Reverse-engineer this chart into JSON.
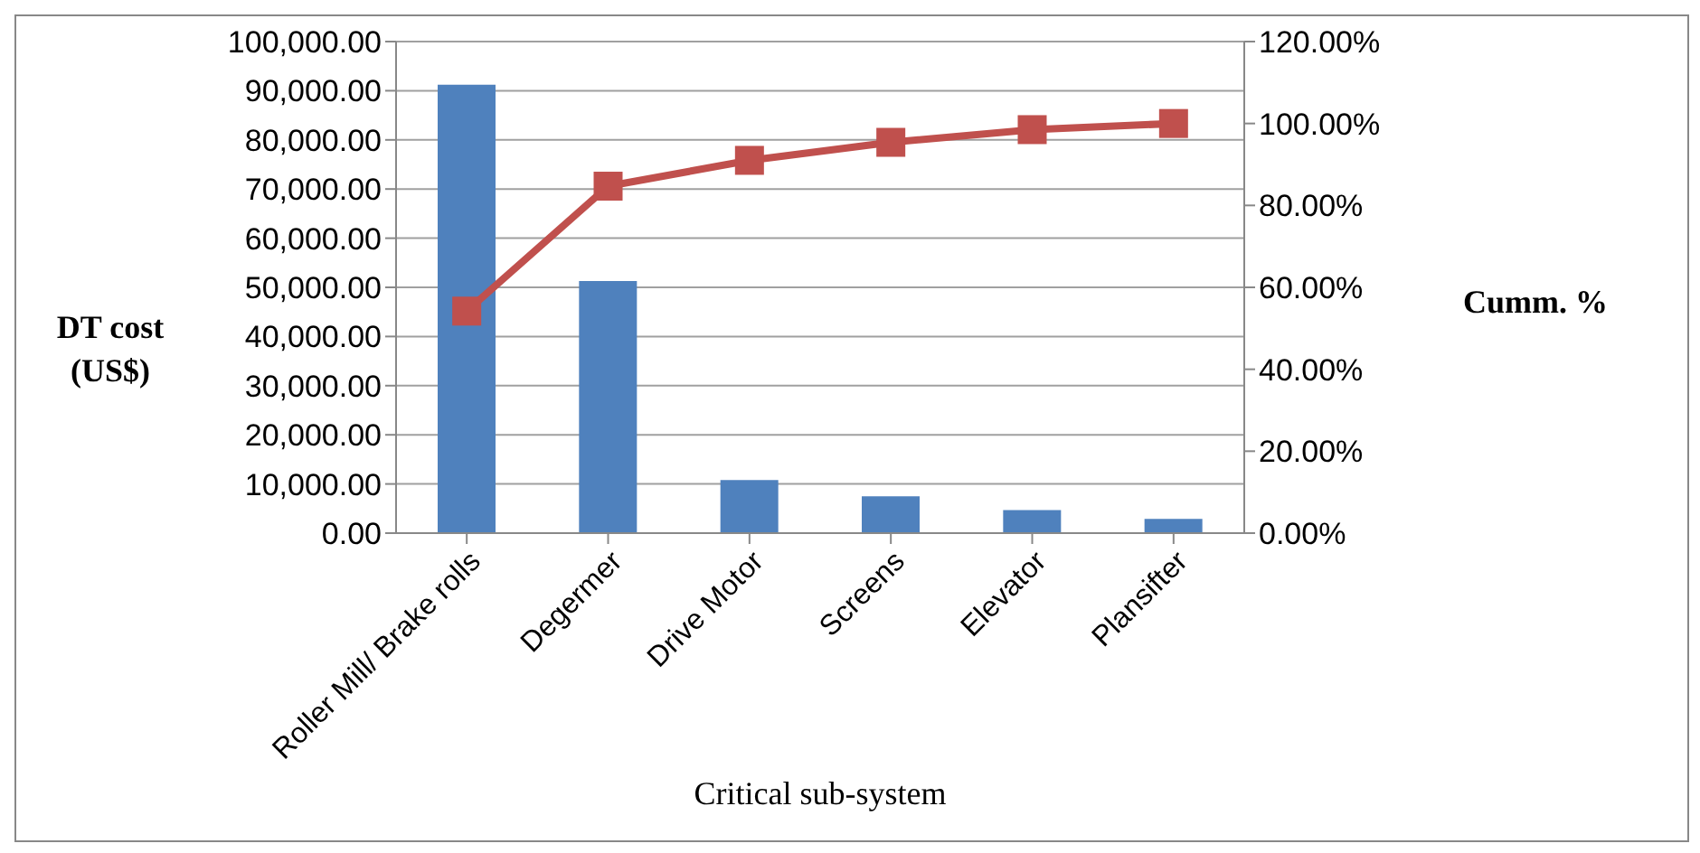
{
  "chart_data": {
    "type": "bar",
    "xlabel": "Critical sub-system",
    "ylabel": "DT cost (US$)",
    "y2label": "Cumm. %",
    "categories": [
      "Roller Mill/ Brake rolls",
      "Degermer",
      "Drive Motor",
      "Screens",
      "Elevator",
      "Plansifter"
    ],
    "series": [
      {
        "color": "#4f81bd",
        "values": [
          91200,
          51300,
          10800,
          7500,
          4700,
          2900
        ]
      },
      {
        "type": "line",
        "axis": "y2",
        "color": "#c0504d",
        "marker": "square",
        "values": [
          54.2,
          84.7,
          91.0,
          95.4,
          98.5,
          100
        ]
      }
    ],
    "ylim": [
      0,
      100000
    ],
    "yticks": [
      {
        "value": 0,
        "label": "0.00"
      },
      {
        "value": 10000,
        "label": "10,000.00"
      },
      {
        "value": 20000,
        "label": "20,000.00"
      },
      {
        "value": 30000,
        "label": "30,000.00"
      },
      {
        "value": 40000,
        "label": "40,000.00"
      },
      {
        "value": 50000,
        "label": "50,000.00"
      },
      {
        "value": 60000,
        "label": "60,000.00"
      },
      {
        "value": 70000,
        "label": "70,000.00"
      },
      {
        "value": 80000,
        "label": "80,000.00"
      },
      {
        "value": 90000,
        "label": "90,000.00"
      },
      {
        "value": 100000,
        "label": "100,000.00"
      }
    ],
    "y2lim": [
      0,
      120
    ],
    "y2ticks": [
      {
        "value": 0,
        "label": "0.00%"
      },
      {
        "value": 20,
        "label": "20.00%"
      },
      {
        "value": 40,
        "label": "40.00%"
      },
      {
        "value": 60,
        "label": "60.00%"
      },
      {
        "value": 80,
        "label": "80.00%"
      },
      {
        "value": 100,
        "label": "100.00%"
      },
      {
        "value": 120,
        "label": "120.00%"
      }
    ],
    "grid": "y",
    "legend": false
  }
}
